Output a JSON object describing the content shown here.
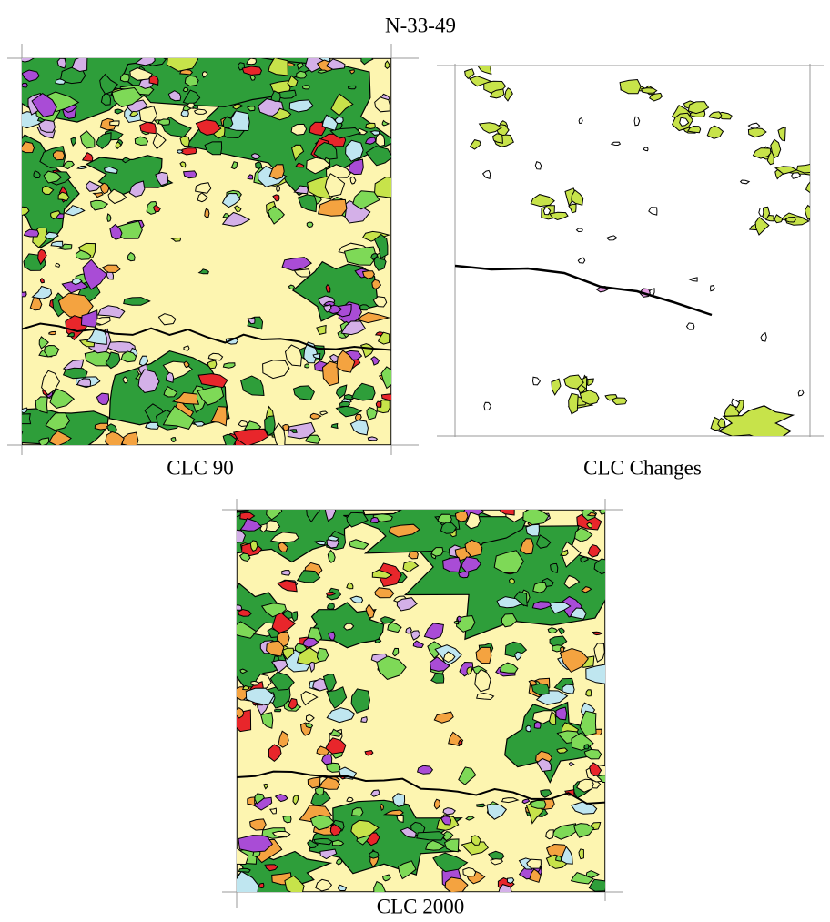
{
  "title": "N-33-49",
  "maps": [
    {
      "caption": "CLC 90"
    },
    {
      "caption": "CLC Changes"
    },
    {
      "caption": "CLC 2000"
    }
  ]
}
